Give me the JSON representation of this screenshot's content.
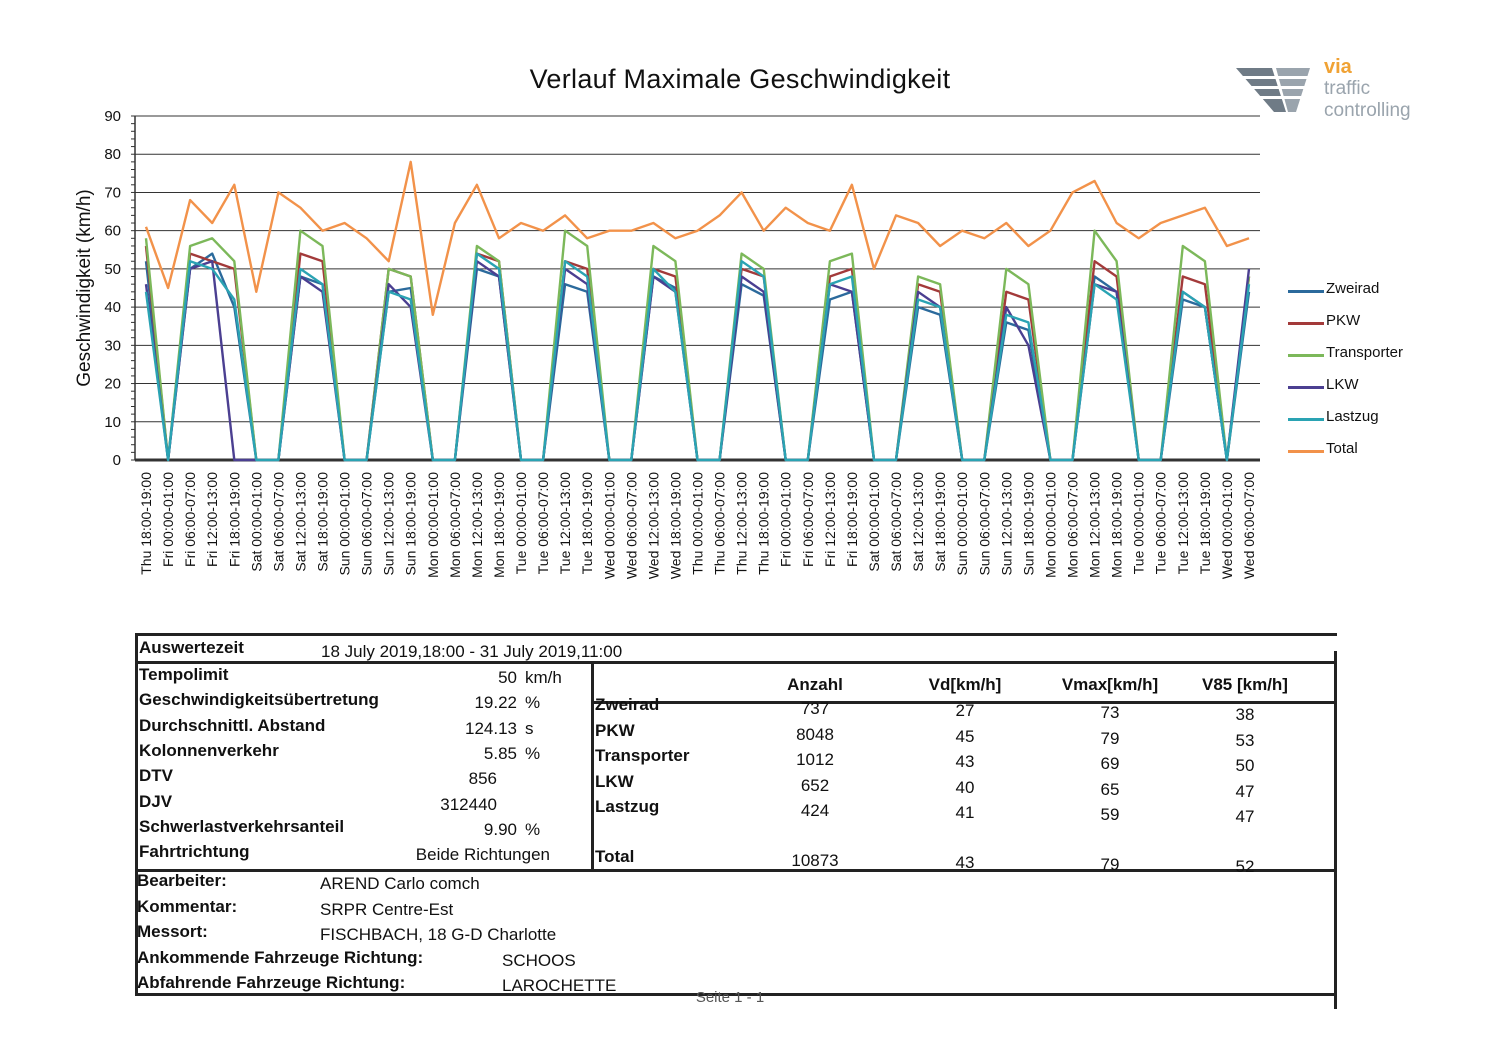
{
  "chart_data": {
    "type": "line",
    "title": "Verlauf  Maximale Geschwindigkeit",
    "ylabel": "Geschwindigkeit (km/h)",
    "ylim": [
      0,
      90
    ],
    "yticks": [
      0,
      10,
      20,
      30,
      40,
      50,
      60,
      70,
      80,
      90
    ],
    "grid": true,
    "legend": "right",
    "x_labels": [
      "Thu 18:00-19:00",
      "Fri 00:00-01:00",
      "Fri 06:00-07:00",
      "Fri 12:00-13:00",
      "Fri 18:00-19:00",
      "Sat 00:00-01:00",
      "Sat 06:00-07:00",
      "Sat 12:00-13:00",
      "Sat 18:00-19:00",
      "Sun 00:00-01:00",
      "Sun 06:00-07:00",
      "Sun 12:00-13:00",
      "Sun 18:00-19:00",
      "Mon 00:00-01:00",
      "Mon 06:00-07:00",
      "Mon 12:00-13:00",
      "Mon 18:00-19:00",
      "Tue 00:00-01:00",
      "Tue 06:00-07:00",
      "Tue 12:00-13:00",
      "Tue 18:00-19:00",
      "Wed 00:00-01:00",
      "Wed 06:00-07:00",
      "Wed 12:00-13:00",
      "Wed 18:00-19:00",
      "Thu 00:00-01:00",
      "Thu 06:00-07:00",
      "Thu 12:00-13:00",
      "Thu 18:00-19:00",
      "Fri 00:00-01:00",
      "Fri 06:00-07:00",
      "Fri 12:00-13:00",
      "Fri 18:00-19:00",
      "Sat 00:00-01:00",
      "Sat 06:00-07:00",
      "Sat 12:00-13:00",
      "Sat 18:00-19:00",
      "Sun 00:00-01:00",
      "Sun 06:00-07:00",
      "Sun 12:00-13:00",
      "Sun 18:00-19:00",
      "Mon 00:00-01:00",
      "Mon 06:00-07:00",
      "Mon 12:00-13:00",
      "Mon 18:00-19:00",
      "Tue 00:00-01:00",
      "Tue 06:00-07:00",
      "Tue 12:00-13:00",
      "Tue 18:00-19:00",
      "Wed 00:00-01:00",
      "Wed 06:00-07:00"
    ],
    "series": [
      {
        "name": "Zweirad",
        "color": "#2b6a9c",
        "values": [
          52,
          0,
          50,
          54,
          40,
          0,
          0,
          48,
          46,
          0,
          0,
          44,
          45,
          0,
          0,
          50,
          48,
          0,
          0,
          46,
          44,
          0,
          0,
          48,
          45,
          0,
          0,
          46,
          43,
          0,
          0,
          42,
          44,
          0,
          0,
          40,
          38,
          0,
          0,
          36,
          34,
          0,
          0,
          48,
          44,
          0,
          0,
          42,
          40,
          0,
          44
        ]
      },
      {
        "name": "PKW",
        "color": "#a33a3a",
        "values": [
          56,
          0,
          54,
          52,
          50,
          0,
          0,
          54,
          52,
          0,
          0,
          50,
          48,
          0,
          0,
          54,
          52,
          0,
          0,
          52,
          50,
          0,
          0,
          50,
          48,
          0,
          0,
          50,
          48,
          0,
          0,
          48,
          50,
          0,
          0,
          46,
          44,
          0,
          0,
          44,
          42,
          0,
          0,
          52,
          48,
          0,
          0,
          48,
          46,
          0,
          48
        ]
      },
      {
        "name": "Transporter",
        "color": "#7cb85a",
        "values": [
          58,
          0,
          56,
          58,
          52,
          0,
          0,
          60,
          56,
          0,
          0,
          50,
          48,
          0,
          0,
          56,
          52,
          0,
          0,
          60,
          56,
          0,
          0,
          56,
          52,
          0,
          0,
          54,
          50,
          0,
          0,
          52,
          54,
          0,
          0,
          48,
          46,
          0,
          0,
          50,
          46,
          0,
          0,
          60,
          52,
          0,
          0,
          56,
          52,
          0,
          48
        ]
      },
      {
        "name": "LKW",
        "color": "#4b3f91",
        "values": [
          46,
          0,
          50,
          52,
          0,
          0,
          0,
          48,
          44,
          0,
          0,
          46,
          40,
          0,
          0,
          52,
          48,
          0,
          0,
          50,
          46,
          0,
          0,
          48,
          44,
          0,
          0,
          48,
          44,
          0,
          0,
          46,
          44,
          0,
          0,
          44,
          40,
          0,
          0,
          40,
          30,
          0,
          0,
          46,
          44,
          0,
          0,
          44,
          40,
          0,
          50
        ]
      },
      {
        "name": "Lastzug",
        "color": "#2aa3b3",
        "values": [
          44,
          0,
          52,
          50,
          42,
          0,
          0,
          50,
          46,
          0,
          0,
          44,
          42,
          0,
          0,
          54,
          50,
          0,
          0,
          52,
          48,
          0,
          0,
          50,
          44,
          0,
          0,
          52,
          48,
          0,
          0,
          46,
          48,
          0,
          0,
          42,
          40,
          0,
          0,
          38,
          36,
          0,
          0,
          46,
          42,
          0,
          0,
          44,
          40,
          0,
          46
        ]
      },
      {
        "name": "Total",
        "color": "#f2924a",
        "values": [
          61,
          45,
          68,
          62,
          72,
          44,
          70,
          66,
          60,
          62,
          58,
          52,
          78,
          38,
          62,
          72,
          58,
          62,
          60,
          64,
          58,
          60,
          60,
          62,
          58,
          60,
          64,
          70,
          60,
          66,
          62,
          60,
          72,
          50,
          64,
          62,
          56,
          60,
          58,
          62,
          56,
          60,
          70,
          73,
          62,
          58,
          62,
          64,
          66,
          56,
          58
        ]
      }
    ]
  },
  "header": {
    "logo_via": "via",
    "logo_line1": "traffic",
    "logo_line2": "controlling"
  },
  "summary": {
    "auswertezeit_label": "Auswertezeit",
    "auswertezeit_value": "18 July 2019,18:00  -  31 July 2019,11:00",
    "stats": [
      {
        "label": "Tempolimit",
        "value": "50",
        "unit": "km/h"
      },
      {
        "label": "Geschwindigkeitsübertretung",
        "value": "19.22",
        "unit": "%"
      },
      {
        "label": "Durchschnittl. Abstand",
        "value": "124.13",
        "unit": "s"
      },
      {
        "label": "Kolonnenverkehr",
        "value": "5.85",
        "unit": "%"
      },
      {
        "label": "DTV",
        "value": "856",
        "unit": ""
      },
      {
        "label": "DJV",
        "value": "312440",
        "unit": ""
      },
      {
        "label": "Schwerlastverkehrsanteil",
        "value": "9.90",
        "unit": "%"
      },
      {
        "label": "Fahrtrichtung",
        "value": "Beide Richtungen",
        "unit": ""
      }
    ],
    "columns": [
      "Anzahl",
      "Vd[km/h]",
      "Vmax[km/h]",
      "V85 [km/h]"
    ],
    "rows": [
      {
        "name": "Zweirad",
        "anzahl": "737",
        "vd": "27",
        "vmax": "73",
        "v85": "38"
      },
      {
        "name": "PKW",
        "anzahl": "8048",
        "vd": "45",
        "vmax": "79",
        "v85": "53"
      },
      {
        "name": "Transporter",
        "anzahl": "1012",
        "vd": "43",
        "vmax": "69",
        "v85": "50"
      },
      {
        "name": "LKW",
        "anzahl": "652",
        "vd": "40",
        "vmax": "65",
        "v85": "47"
      },
      {
        "name": "Lastzug",
        "anzahl": "424",
        "vd": "41",
        "vmax": "59",
        "v85": "47"
      }
    ],
    "total": {
      "name": "Total",
      "anzahl": "10873",
      "vd": "43",
      "vmax": "79",
      "v85": "52"
    },
    "info": [
      {
        "label": "Bearbeiter:",
        "value": "AREND Carlo comch"
      },
      {
        "label": "Kommentar:",
        "value": "SRPR Centre-Est"
      },
      {
        "label": "Messort:",
        "value": "FISCHBACH, 18 G-D Charlotte"
      },
      {
        "label": "Ankommende Fahrzeuge Richtung:",
        "value": "SCHOOS"
      },
      {
        "label": "Abfahrende Fahrzeuge Richtung:",
        "value": "LAROCHETTE"
      }
    ]
  },
  "footer": {
    "page": "Seite 1 - 1"
  }
}
